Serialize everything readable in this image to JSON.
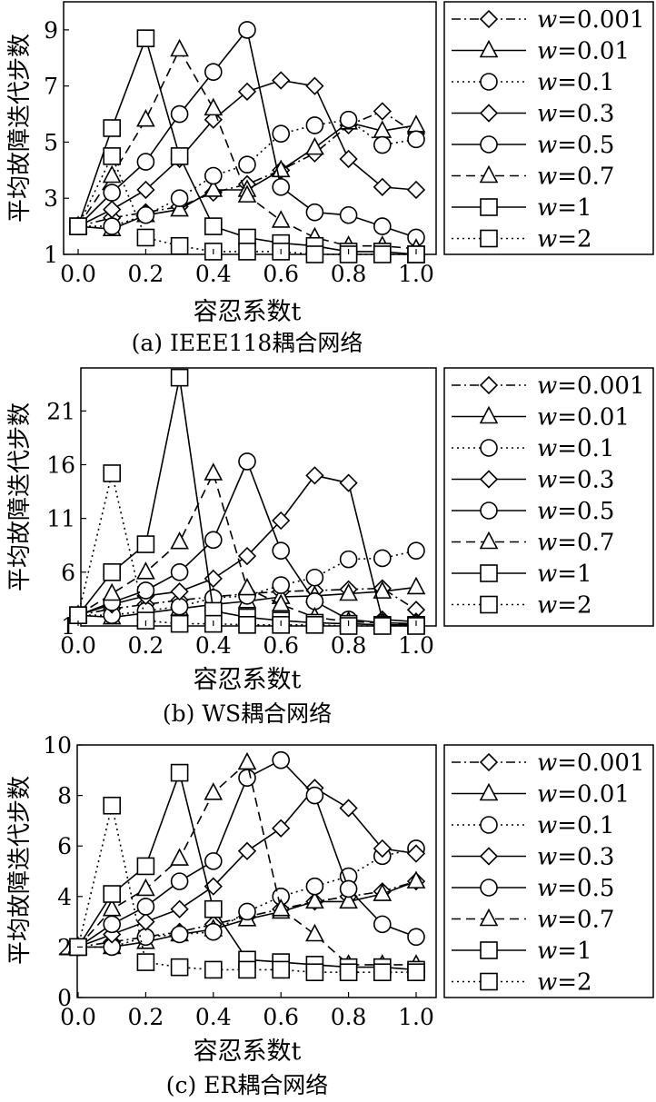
{
  "legend_entries": [
    {
      "label": "w=0.001",
      "marker": "diamond",
      "dash": "dashdot"
    },
    {
      "label": "w=0.01",
      "marker": "triangle",
      "dash": "solid"
    },
    {
      "label": "w=0.1",
      "marker": "circle",
      "dash": "dotted"
    },
    {
      "label": "w=0.3",
      "marker": "diamond",
      "dash": "solid"
    },
    {
      "label": "w=0.5",
      "marker": "circle",
      "dash": "solid"
    },
    {
      "label": "w=0.7",
      "marker": "triangle",
      "dash": "dashed"
    },
    {
      "label": "w=1",
      "marker": "square",
      "dash": "solid"
    },
    {
      "label": "w=2",
      "marker": "square",
      "dash": "dotted"
    }
  ],
  "chart_data": [
    {
      "type": "line",
      "caption": "(a) IEEE118耦合网络",
      "xlabel": "容忍系数t",
      "ylabel": "平均故障迭代步数",
      "xlim": [
        0,
        1
      ],
      "ylim": [
        1,
        10
      ],
      "xticks": [
        "0.0",
        "0.2",
        "0.4",
        "0.6",
        "0.8",
        "1.0"
      ],
      "yticks": [
        1,
        3,
        5,
        7,
        9
      ],
      "x": [
        0,
        0.1,
        0.2,
        0.3,
        0.4,
        0.5,
        0.6,
        0.7,
        0.8,
        0.9,
        1.0
      ],
      "series": [
        {
          "name": "w=0.001",
          "values": [
            2,
            2.3,
            2.5,
            2.7,
            3.2,
            3.5,
            4.0,
            4.6,
            5.6,
            6.1,
            5.3
          ]
        },
        {
          "name": "w=0.01",
          "values": [
            2,
            1.9,
            2.4,
            2.6,
            3.3,
            3.3,
            4.0,
            4.8,
            5.7,
            5.4,
            5.6
          ]
        },
        {
          "name": "w=0.1",
          "values": [
            2,
            2.0,
            2.4,
            3.0,
            3.8,
            4.2,
            5.3,
            5.6,
            5.8,
            4.9,
            5.1
          ]
        },
        {
          "name": "w=0.3",
          "values": [
            2,
            2.6,
            3.3,
            4.4,
            5.8,
            6.8,
            7.2,
            7.0,
            4.4,
            3.4,
            3.3
          ]
        },
        {
          "name": "w=0.5",
          "values": [
            2,
            3.2,
            4.3,
            6.0,
            7.5,
            9.0,
            3.4,
            2.5,
            2.4,
            2.0,
            1.6
          ]
        },
        {
          "name": "w=0.7",
          "values": [
            2,
            3.8,
            5.8,
            8.3,
            6.2,
            3.1,
            2.2,
            1.6,
            1.3,
            1.3,
            1.2
          ]
        },
        {
          "name": "w=1",
          "values": [
            2,
            5.5,
            8.7,
            4.5,
            2.0,
            1.6,
            1.4,
            1.3,
            1.1,
            1.1,
            1.0
          ]
        },
        {
          "name": "w=2",
          "values": [
            2,
            4.5,
            1.6,
            1.3,
            1.1,
            1.1,
            1.1,
            1.0,
            1.0,
            1.0,
            1.0
          ]
        }
      ]
    },
    {
      "type": "line",
      "caption": "(b) WS耦合网络",
      "xlabel": "容忍系数t",
      "ylabel": "平均故障迭代步数",
      "xlim": [
        0,
        1
      ],
      "ylim": [
        1,
        25
      ],
      "xticks": [
        "0.0",
        "0.2",
        "0.4",
        "0.6",
        "0.8",
        "1.0"
      ],
      "yticks": [
        1,
        6,
        11,
        16,
        21
      ],
      "x": [
        0,
        0.1,
        0.2,
        0.3,
        0.4,
        0.5,
        0.6,
        0.7,
        0.8,
        0.9,
        1.0
      ],
      "series": [
        {
          "name": "w=0.001",
          "values": [
            2,
            2.6,
            3.0,
            3.4,
            3.7,
            4.0,
            4.2,
            4.3,
            4.4,
            4.5,
            2.5
          ]
        },
        {
          "name": "w=0.01",
          "values": [
            2,
            1.8,
            2.2,
            2.6,
            3.0,
            3.3,
            3.7,
            3.8,
            4.0,
            4.2,
            4.6
          ]
        },
        {
          "name": "w=0.1",
          "values": [
            2,
            2.0,
            2.4,
            2.8,
            3.6,
            3.8,
            4.8,
            5.5,
            7.2,
            7.3,
            8.0
          ]
        },
        {
          "name": "w=0.3",
          "values": [
            2,
            3.0,
            3.8,
            4.2,
            5.4,
            7.5,
            10.8,
            15.0,
            14.3,
            1.6,
            1.4
          ]
        },
        {
          "name": "w=0.5",
          "values": [
            2,
            3.2,
            4.3,
            6.0,
            9.0,
            16.3,
            8.0,
            3.3,
            1.6,
            1.3,
            1.2
          ]
        },
        {
          "name": "w=0.7",
          "values": [
            2,
            4.0,
            6.0,
            8.8,
            15.2,
            4.5,
            3.0,
            1.8,
            1.4,
            1.3,
            1.2
          ]
        },
        {
          "name": "w=1",
          "values": [
            2,
            6.0,
            8.6,
            24.1,
            2.4,
            1.8,
            1.5,
            1.3,
            1.2,
            1.1,
            1.1
          ]
        },
        {
          "name": "w=2",
          "values": [
            2,
            15.2,
            1.5,
            1.2,
            1.2,
            1.1,
            1.1,
            1.1,
            1.0,
            1.0,
            1.0
          ]
        }
      ]
    },
    {
      "type": "line",
      "caption": "(c) ER耦合网络",
      "xlabel": "容忍系数t",
      "ylabel": "平均故障迭代步数",
      "xlim": [
        0,
        1
      ],
      "ylim": [
        0,
        10
      ],
      "xticks": [
        "0.0",
        "0.2",
        "0.4",
        "0.6",
        "0.8",
        "1.0"
      ],
      "yticks": [
        0,
        2,
        4,
        6,
        8,
        10
      ],
      "x": [
        0,
        0.1,
        0.2,
        0.3,
        0.4,
        0.5,
        0.6,
        0.7,
        0.8,
        0.9,
        1.0
      ],
      "series": [
        {
          "name": "w=0.001",
          "values": [
            2,
            2.2,
            2.4,
            2.6,
            2.9,
            3.2,
            3.5,
            3.8,
            4.0,
            4.2,
            4.6
          ]
        },
        {
          "name": "w=0.01",
          "values": [
            2,
            2.0,
            2.2,
            2.5,
            2.7,
            3.1,
            3.4,
            3.8,
            3.8,
            4.1,
            4.6
          ]
        },
        {
          "name": "w=0.1",
          "values": [
            2,
            2.0,
            2.4,
            2.5,
            2.6,
            3.4,
            4.0,
            4.4,
            4.8,
            5.6,
            5.9
          ]
        },
        {
          "name": "w=0.3",
          "values": [
            2,
            2.5,
            3.0,
            3.5,
            4.4,
            5.8,
            6.7,
            8.3,
            7.5,
            5.9,
            5.7
          ]
        },
        {
          "name": "w=0.5",
          "values": [
            2,
            2.9,
            3.6,
            4.6,
            5.4,
            8.7,
            9.4,
            8.0,
            4.3,
            2.9,
            2.4
          ]
        },
        {
          "name": "w=0.7",
          "values": [
            2,
            3.5,
            4.3,
            5.5,
            8.1,
            9.3,
            3.5,
            2.5,
            1.3,
            1.3,
            1.3
          ]
        },
        {
          "name": "w=1",
          "values": [
            2,
            4.1,
            5.2,
            8.9,
            3.5,
            1.5,
            1.4,
            1.3,
            1.2,
            1.2,
            1.1
          ]
        },
        {
          "name": "w=2",
          "values": [
            2,
            7.6,
            1.4,
            1.2,
            1.1,
            1.1,
            1.1,
            1.0,
            1.0,
            1.0,
            1.0
          ]
        }
      ]
    }
  ]
}
